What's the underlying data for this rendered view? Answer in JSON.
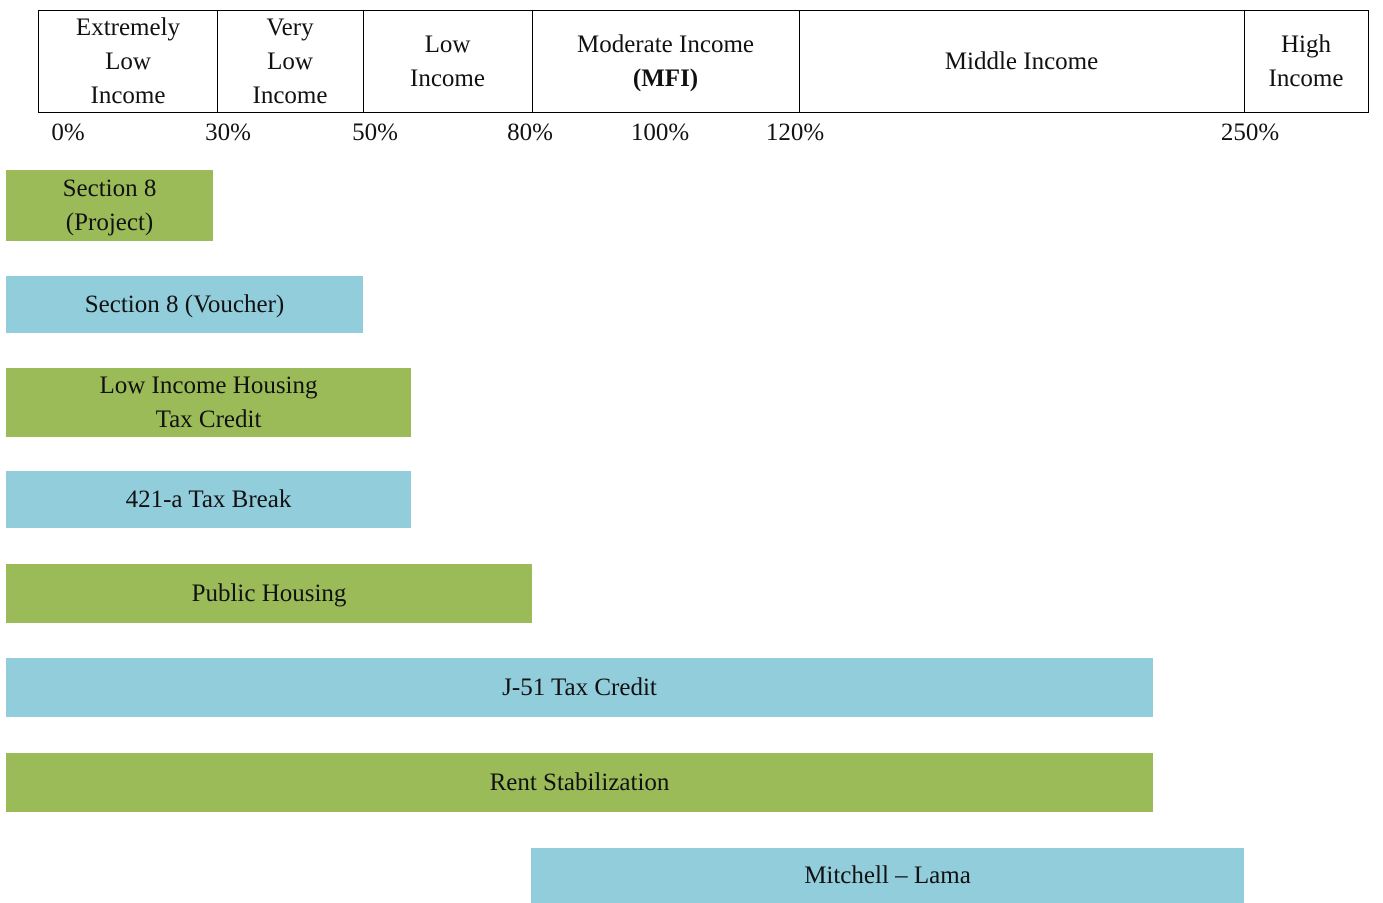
{
  "header": {
    "cells": [
      {
        "lines": [
          "Extremely",
          "Low",
          "Income"
        ]
      },
      {
        "lines": [
          "Very",
          "Low",
          "Income"
        ]
      },
      {
        "lines": [
          "Low",
          "Income"
        ]
      },
      {
        "lines": [
          "Moderate Income",
          "(MFI)"
        ]
      },
      {
        "lines": [
          "Middle Income"
        ]
      },
      {
        "lines": [
          "High",
          "Income"
        ]
      }
    ]
  },
  "scale": [
    "0%",
    "30%",
    "50%",
    "80%",
    "100%",
    "120%",
    "250%"
  ],
  "programs": [
    {
      "lines": [
        "Section 8",
        "(Project)"
      ],
      "color": "#9bbb59"
    },
    {
      "lines": [
        "Section 8 (Voucher)"
      ],
      "color": "#92cddc"
    },
    {
      "lines": [
        "Low Income Housing",
        "Tax Credit"
      ],
      "color": "#9bbb59"
    },
    {
      "lines": [
        "421-a Tax Break"
      ],
      "color": "#92cddc"
    },
    {
      "lines": [
        "Public Housing"
      ],
      "color": "#9bbb59"
    },
    {
      "lines": [
        "J-51 Tax Credit"
      ],
      "color": "#92cddc"
    },
    {
      "lines": [
        "Rent Stabilization"
      ],
      "color": "#9bbb59"
    },
    {
      "lines": [
        "Mitchell – Lama"
      ],
      "color": "#92cddc"
    }
  ]
}
